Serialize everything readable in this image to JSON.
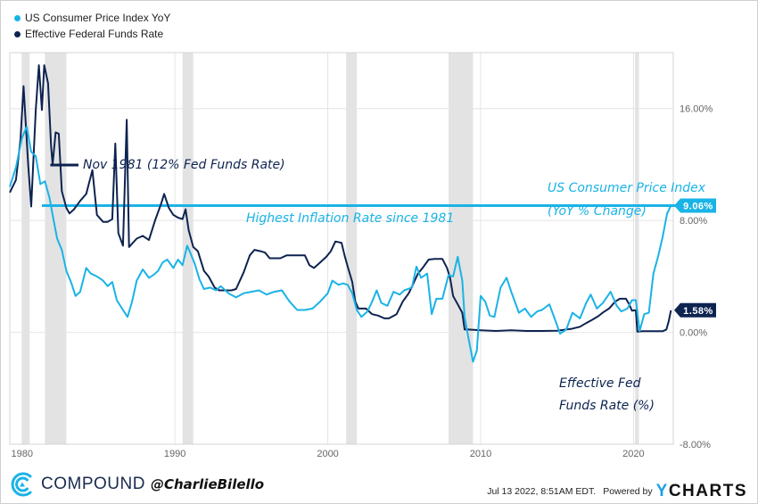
{
  "legend": [
    {
      "label": "US Consumer Price Index YoY",
      "color": "#1ab3e6"
    },
    {
      "label": "Effective Federal Funds Rate",
      "color": "#0d2350"
    }
  ],
  "chart_data": {
    "type": "line",
    "title": "",
    "xlabel": "",
    "ylabel": "",
    "xlim": [
      1979.2,
      2022.6
    ],
    "ylim": [
      -8,
      20
    ],
    "y_ticks": [
      {
        "value": 16,
        "label": "16.00%"
      },
      {
        "value": 8,
        "label": "8.00%"
      },
      {
        "value": 0,
        "label": "0.00%"
      },
      {
        "value": -8,
        "label": "-8.00%"
      }
    ],
    "x_ticks": [
      {
        "value": 1980,
        "label": "1980"
      },
      {
        "value": 1990,
        "label": "1990"
      },
      {
        "value": 2000,
        "label": "2000"
      },
      {
        "value": 2010,
        "label": "2010"
      },
      {
        "value": 2020,
        "label": "2020"
      }
    ],
    "grid": true,
    "legend_position": "top-left",
    "recessions": [
      [
        1980.0,
        1980.5
      ],
      [
        1981.5,
        1982.9
      ],
      [
        1990.5,
        1991.2
      ],
      [
        2001.2,
        2001.9
      ],
      [
        2007.9,
        2009.5
      ],
      [
        2020.1,
        2020.35
      ]
    ],
    "series": [
      {
        "name": "US Consumer Price Index YoY",
        "color": "#1ab3e6",
        "points": [
          [
            1979.2,
            10.4
          ],
          [
            1979.6,
            11.8
          ],
          [
            1980.0,
            13.9
          ],
          [
            1980.3,
            14.7
          ],
          [
            1980.6,
            12.9
          ],
          [
            1980.9,
            12.6
          ],
          [
            1981.2,
            10.6
          ],
          [
            1981.5,
            10.8
          ],
          [
            1981.8,
            9.6
          ],
          [
            1982.0,
            8.4
          ],
          [
            1982.3,
            6.7
          ],
          [
            1982.6,
            5.9
          ],
          [
            1982.9,
            4.4
          ],
          [
            1983.2,
            3.6
          ],
          [
            1983.5,
            2.6
          ],
          [
            1983.8,
            2.9
          ],
          [
            1984.2,
            4.6
          ],
          [
            1984.5,
            4.2
          ],
          [
            1984.9,
            4.0
          ],
          [
            1985.3,
            3.7
          ],
          [
            1985.6,
            3.3
          ],
          [
            1985.9,
            3.6
          ],
          [
            1986.2,
            2.3
          ],
          [
            1986.6,
            1.6
          ],
          [
            1986.9,
            1.1
          ],
          [
            1987.2,
            2.2
          ],
          [
            1987.5,
            3.7
          ],
          [
            1987.9,
            4.5
          ],
          [
            1988.3,
            3.9
          ],
          [
            1988.6,
            4.1
          ],
          [
            1988.9,
            4.4
          ],
          [
            1989.2,
            5.0
          ],
          [
            1989.5,
            5.2
          ],
          [
            1989.9,
            4.6
          ],
          [
            1990.2,
            5.2
          ],
          [
            1990.5,
            4.8
          ],
          [
            1990.8,
            6.2
          ],
          [
            1991.0,
            5.7
          ],
          [
            1991.3,
            4.9
          ],
          [
            1991.6,
            3.8
          ],
          [
            1991.9,
            3.1
          ],
          [
            1992.3,
            3.2
          ],
          [
            1992.7,
            3.0
          ],
          [
            1993.0,
            3.3
          ],
          [
            1993.5,
            2.8
          ],
          [
            1994.0,
            2.5
          ],
          [
            1994.5,
            2.8
          ],
          [
            1995.0,
            2.9
          ],
          [
            1995.5,
            3.0
          ],
          [
            1996.0,
            2.7
          ],
          [
            1996.5,
            2.9
          ],
          [
            1997.0,
            3.0
          ],
          [
            1997.5,
            2.2
          ],
          [
            1998.0,
            1.6
          ],
          [
            1998.5,
            1.6
          ],
          [
            1999.0,
            1.7
          ],
          [
            1999.5,
            2.2
          ],
          [
            2000.0,
            2.8
          ],
          [
            2000.3,
            3.7
          ],
          [
            2000.7,
            3.4
          ],
          [
            2001.0,
            3.5
          ],
          [
            2001.3,
            3.4
          ],
          [
            2001.6,
            2.8
          ],
          [
            2001.9,
            1.6
          ],
          [
            2002.2,
            1.1
          ],
          [
            2002.6,
            1.5
          ],
          [
            2002.9,
            2.2
          ],
          [
            2003.2,
            3.0
          ],
          [
            2003.5,
            2.1
          ],
          [
            2003.9,
            1.9
          ],
          [
            2004.3,
            2.9
          ],
          [
            2004.7,
            2.7
          ],
          [
            2005.0,
            3.0
          ],
          [
            2005.5,
            3.2
          ],
          [
            2005.8,
            4.7
          ],
          [
            2006.1,
            3.9
          ],
          [
            2006.5,
            4.2
          ],
          [
            2006.8,
            1.3
          ],
          [
            2007.1,
            2.4
          ],
          [
            2007.5,
            2.4
          ],
          [
            2007.9,
            4.1
          ],
          [
            2008.2,
            4.0
          ],
          [
            2008.5,
            5.4
          ],
          [
            2008.8,
            3.7
          ],
          [
            2008.95,
            1.1
          ],
          [
            2009.2,
            -0.4
          ],
          [
            2009.5,
            -2.1
          ],
          [
            2009.75,
            -1.3
          ],
          [
            2010.0,
            2.6
          ],
          [
            2010.3,
            2.2
          ],
          [
            2010.6,
            1.2
          ],
          [
            2010.9,
            1.1
          ],
          [
            2011.3,
            3.2
          ],
          [
            2011.7,
            3.9
          ],
          [
            2012.0,
            2.9
          ],
          [
            2012.5,
            1.4
          ],
          [
            2012.9,
            1.7
          ],
          [
            2013.3,
            1.1
          ],
          [
            2013.7,
            1.5
          ],
          [
            2014.0,
            1.6
          ],
          [
            2014.5,
            2.0
          ],
          [
            2014.9,
            0.8
          ],
          [
            2015.2,
            -0.1
          ],
          [
            2015.6,
            0.2
          ],
          [
            2016.0,
            1.4
          ],
          [
            2016.5,
            1.0
          ],
          [
            2016.9,
            2.1
          ],
          [
            2017.2,
            2.7
          ],
          [
            2017.6,
            1.7
          ],
          [
            2018.0,
            2.1
          ],
          [
            2018.5,
            2.9
          ],
          [
            2018.9,
            1.9
          ],
          [
            2019.2,
            1.5
          ],
          [
            2019.6,
            1.7
          ],
          [
            2019.9,
            2.3
          ],
          [
            2020.15,
            2.3
          ],
          [
            2020.4,
            0.1
          ],
          [
            2020.7,
            1.3
          ],
          [
            2021.0,
            1.4
          ],
          [
            2021.3,
            4.2
          ],
          [
            2021.6,
            5.4
          ],
          [
            2021.9,
            6.8
          ],
          [
            2022.2,
            8.5
          ],
          [
            2022.45,
            9.06
          ]
        ]
      },
      {
        "name": "Effective Federal Funds Rate",
        "color": "#0d2350",
        "points": [
          [
            1979.2,
            10.0
          ],
          [
            1979.6,
            10.9
          ],
          [
            1979.9,
            13.8
          ],
          [
            1980.1,
            17.6
          ],
          [
            1980.4,
            12.0
          ],
          [
            1980.6,
            9.0
          ],
          [
            1980.9,
            15.9
          ],
          [
            1981.1,
            19.1
          ],
          [
            1981.3,
            15.9
          ],
          [
            1981.45,
            19.1
          ],
          [
            1981.7,
            17.8
          ],
          [
            1981.9,
            13.3
          ],
          [
            1982.0,
            12.0
          ],
          [
            1982.2,
            14.3
          ],
          [
            1982.4,
            14.2
          ],
          [
            1982.6,
            10.1
          ],
          [
            1982.9,
            8.9
          ],
          [
            1983.1,
            8.5
          ],
          [
            1983.4,
            8.8
          ],
          [
            1983.8,
            9.4
          ],
          [
            1984.2,
            9.9
          ],
          [
            1984.6,
            11.6
          ],
          [
            1984.9,
            8.4
          ],
          [
            1985.3,
            7.9
          ],
          [
            1985.6,
            7.9
          ],
          [
            1985.9,
            8.1
          ],
          [
            1986.1,
            13.5
          ],
          [
            1986.3,
            7.1
          ],
          [
            1986.6,
            6.2
          ],
          [
            1986.85,
            15.2
          ],
          [
            1987.0,
            6.1
          ],
          [
            1987.5,
            6.7
          ],
          [
            1987.9,
            6.9
          ],
          [
            1988.3,
            6.6
          ],
          [
            1988.7,
            8.0
          ],
          [
            1989.1,
            9.2
          ],
          [
            1989.3,
            9.9
          ],
          [
            1989.6,
            8.9
          ],
          [
            1989.9,
            8.4
          ],
          [
            1990.2,
            8.2
          ],
          [
            1990.5,
            8.1
          ],
          [
            1990.7,
            8.8
          ],
          [
            1990.9,
            7.3
          ],
          [
            1991.2,
            6.1
          ],
          [
            1991.5,
            5.8
          ],
          [
            1991.9,
            4.4
          ],
          [
            1992.2,
            4.0
          ],
          [
            1992.6,
            3.2
          ],
          [
            1992.9,
            3.0
          ],
          [
            1993.3,
            3.0
          ],
          [
            1993.7,
            3.0
          ],
          [
            1994.0,
            3.1
          ],
          [
            1994.5,
            4.3
          ],
          [
            1994.9,
            5.5
          ],
          [
            1995.2,
            5.9
          ],
          [
            1995.6,
            5.8
          ],
          [
            1995.9,
            5.7
          ],
          [
            1996.2,
            5.3
          ],
          [
            1996.6,
            5.3
          ],
          [
            1996.9,
            5.3
          ],
          [
            1997.3,
            5.5
          ],
          [
            1997.7,
            5.5
          ],
          [
            1998.0,
            5.5
          ],
          [
            1998.5,
            5.5
          ],
          [
            1998.8,
            4.8
          ],
          [
            1999.1,
            4.6
          ],
          [
            1999.5,
            5.0
          ],
          [
            1999.9,
            5.4
          ],
          [
            2000.2,
            5.8
          ],
          [
            2000.5,
            6.5
          ],
          [
            2000.9,
            6.4
          ],
          [
            2001.1,
            5.5
          ],
          [
            2001.3,
            4.7
          ],
          [
            2001.6,
            3.6
          ],
          [
            2001.8,
            2.2
          ],
          [
            2002.0,
            1.7
          ],
          [
            2002.5,
            1.7
          ],
          [
            2002.9,
            1.3
          ],
          [
            2003.3,
            1.2
          ],
          [
            2003.7,
            1.0
          ],
          [
            2004.0,
            1.0
          ],
          [
            2004.5,
            1.3
          ],
          [
            2004.9,
            2.2
          ],
          [
            2005.3,
            2.8
          ],
          [
            2005.6,
            3.5
          ],
          [
            2005.9,
            4.2
          ],
          [
            2006.2,
            4.6
          ],
          [
            2006.6,
            5.2
          ],
          [
            2007.0,
            5.25
          ],
          [
            2007.5,
            5.25
          ],
          [
            2007.8,
            4.6
          ],
          [
            2008.0,
            3.9
          ],
          [
            2008.2,
            2.6
          ],
          [
            2008.5,
            2.0
          ],
          [
            2008.8,
            1.4
          ],
          [
            2008.95,
            0.2
          ],
          [
            2009.2,
            0.2
          ],
          [
            2010.0,
            0.15
          ],
          [
            2011.0,
            0.1
          ],
          [
            2012.0,
            0.15
          ],
          [
            2013.0,
            0.1
          ],
          [
            2014.0,
            0.1
          ],
          [
            2015.0,
            0.12
          ],
          [
            2015.9,
            0.24
          ],
          [
            2016.5,
            0.4
          ],
          [
            2016.9,
            0.66
          ],
          [
            2017.3,
            0.9
          ],
          [
            2017.7,
            1.16
          ],
          [
            2018.0,
            1.42
          ],
          [
            2018.4,
            1.7
          ],
          [
            2018.8,
            2.2
          ],
          [
            2019.1,
            2.4
          ],
          [
            2019.5,
            2.4
          ],
          [
            2019.7,
            2.04
          ],
          [
            2019.9,
            1.55
          ],
          [
            2020.15,
            1.58
          ],
          [
            2020.25,
            0.05
          ],
          [
            2020.6,
            0.09
          ],
          [
            2021.0,
            0.08
          ],
          [
            2021.5,
            0.08
          ],
          [
            2021.9,
            0.08
          ],
          [
            2022.15,
            0.2
          ],
          [
            2022.3,
            0.8
          ],
          [
            2022.45,
            1.58
          ]
        ]
      }
    ],
    "end_labels": [
      {
        "series": "US Consumer Price Index YoY",
        "label": "9.06%",
        "value": 9.06,
        "color": "#1ab3e6"
      },
      {
        "series": "Effective Federal Funds Rate",
        "label": "1.58%",
        "value": 1.58,
        "color": "#0d2350"
      }
    ],
    "reference_lines": [
      {
        "value": 9.06,
        "from_x": 1981.3,
        "to_x": 2022.45,
        "color": "#1ab3e6",
        "label": "Highest Inflation Rate since 1981"
      }
    ],
    "annotations": [
      {
        "text": "Nov 1981 (12% Fed Funds Rate)",
        "x": 1981.85,
        "y": 12.0,
        "color": "#0d2350"
      },
      {
        "text": "US Consumer Price Index",
        "color": "#1ab3e6"
      },
      {
        "text": "(YoY % Change)",
        "color": "#1ab3e6"
      },
      {
        "text": "Effective Fed",
        "color": "#0d2350"
      },
      {
        "text": "Funds Rate (%)",
        "color": "#0d2350"
      }
    ]
  },
  "footer": {
    "brand": "COMPOUND",
    "handle": "@CharlieBilello",
    "timestamp": "Jul 13 2022, 8:51AM EDT.",
    "powered_by": "Powered by",
    "ycharts_y": "Y",
    "ycharts_rest": "CHARTS"
  }
}
